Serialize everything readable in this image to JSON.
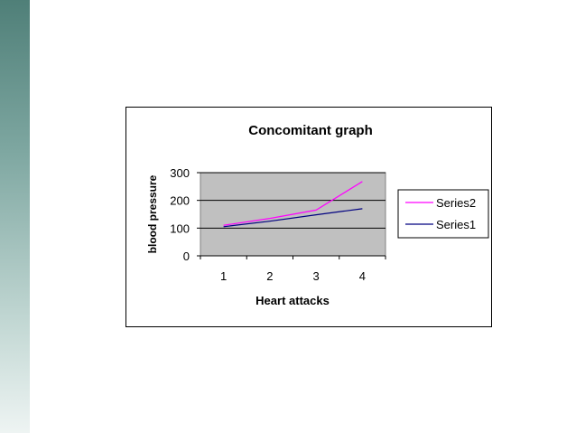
{
  "chart_data": {
    "type": "line",
    "title": "Concomitant graph",
    "xlabel": "Heart attacks",
    "ylabel": "blood pressure",
    "categories": [
      "1",
      "2",
      "3",
      "4"
    ],
    "ylim": [
      0,
      300
    ],
    "yticks": [
      "0",
      "100",
      "200",
      "300"
    ],
    "grid": true,
    "legend": "right",
    "series": [
      {
        "name": "Series2",
        "color": "#ff00ff",
        "values": [
          110,
          135,
          165,
          268
        ]
      },
      {
        "name": "Series1",
        "color": "#000080",
        "values": [
          105,
          125,
          148,
          170
        ]
      }
    ]
  }
}
